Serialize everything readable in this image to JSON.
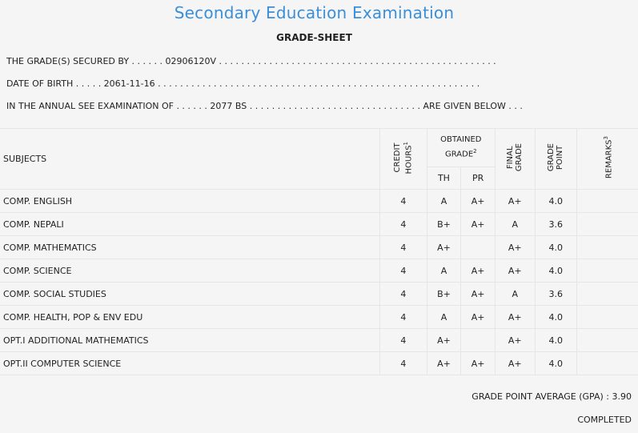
{
  "header": {
    "exam_title": "Secondary Education Examination",
    "sheet_title": "GRADE-SHEET"
  },
  "info": {
    "secured_by": "THE GRADE(S) SECURED BY . . . . . . 02906120V . . . . . . . . . . . . . . . . . . . . . . . . . . . . . . . . . . . . . . . . . . . . . . . . . .",
    "dob": "DATE OF BIRTH . . . . . 2061-11-16 . . . . . . . . . . . . . . . . . . . . . . . . . . . . . . . . . . . . . . . . . . . . . . . . . . . . . . . . . .",
    "exam_of": "IN THE ANNUAL SEE EXAMINATION OF . . . . . . 2077 BS . . . . . . . . . . . . . . . . . . . . . . . . . . . . . . . ARE GIVEN BELOW . . ."
  },
  "table": {
    "headers": {
      "subjects": "SUBJECTS",
      "credit_line1": "CREDIT",
      "credit_line2": "HOURS",
      "credit_sup": "1",
      "obtained_line1": "OBTAINED",
      "obtained_line2": "GRADE",
      "obtained_sup": "2",
      "th": "TH",
      "pr": "PR",
      "final_line1": "FINAL",
      "final_line2": "GRADE",
      "gp_line1": "GRADE",
      "gp_line2": "POINT",
      "remarks": "REMARKS",
      "remarks_sup": "3"
    },
    "rows": [
      {
        "subject": "COMP. ENGLISH",
        "credit": "4",
        "th": "A",
        "pr": "A+",
        "final": "A+",
        "gp": "4.0",
        "remarks": ""
      },
      {
        "subject": "COMP. NEPALI",
        "credit": "4",
        "th": "B+",
        "pr": "A+",
        "final": "A",
        "gp": "3.6",
        "remarks": ""
      },
      {
        "subject": "COMP. MATHEMATICS",
        "credit": "4",
        "th": "A+",
        "pr": "",
        "final": "A+",
        "gp": "4.0",
        "remarks": ""
      },
      {
        "subject": "COMP. SCIENCE",
        "credit": "4",
        "th": "A",
        "pr": "A+",
        "final": "A+",
        "gp": "4.0",
        "remarks": ""
      },
      {
        "subject": "COMP. SOCIAL STUDIES",
        "credit": "4",
        "th": "B+",
        "pr": "A+",
        "final": "A",
        "gp": "3.6",
        "remarks": ""
      },
      {
        "subject": "COMP. HEALTH, POP & ENV EDU",
        "credit": "4",
        "th": "A",
        "pr": "A+",
        "final": "A+",
        "gp": "4.0",
        "remarks": ""
      },
      {
        "subject": "OPT.I ADDITIONAL MATHEMATICS",
        "credit": "4",
        "th": "A+",
        "pr": "",
        "final": "A+",
        "gp": "4.0",
        "remarks": ""
      },
      {
        "subject": "OPT.II COMPUTER SCIENCE",
        "credit": "4",
        "th": "A+",
        "pr": "A+",
        "final": "A+",
        "gp": "4.0",
        "remarks": ""
      }
    ]
  },
  "summary": {
    "gpa": "GRADE POINT AVERAGE (GPA) : 3.90",
    "status": "COMPLETED"
  },
  "colors": {
    "title_blue": "#3b8fd8",
    "background": "#f5f5f5",
    "grid_line": "#e6e6e6"
  }
}
